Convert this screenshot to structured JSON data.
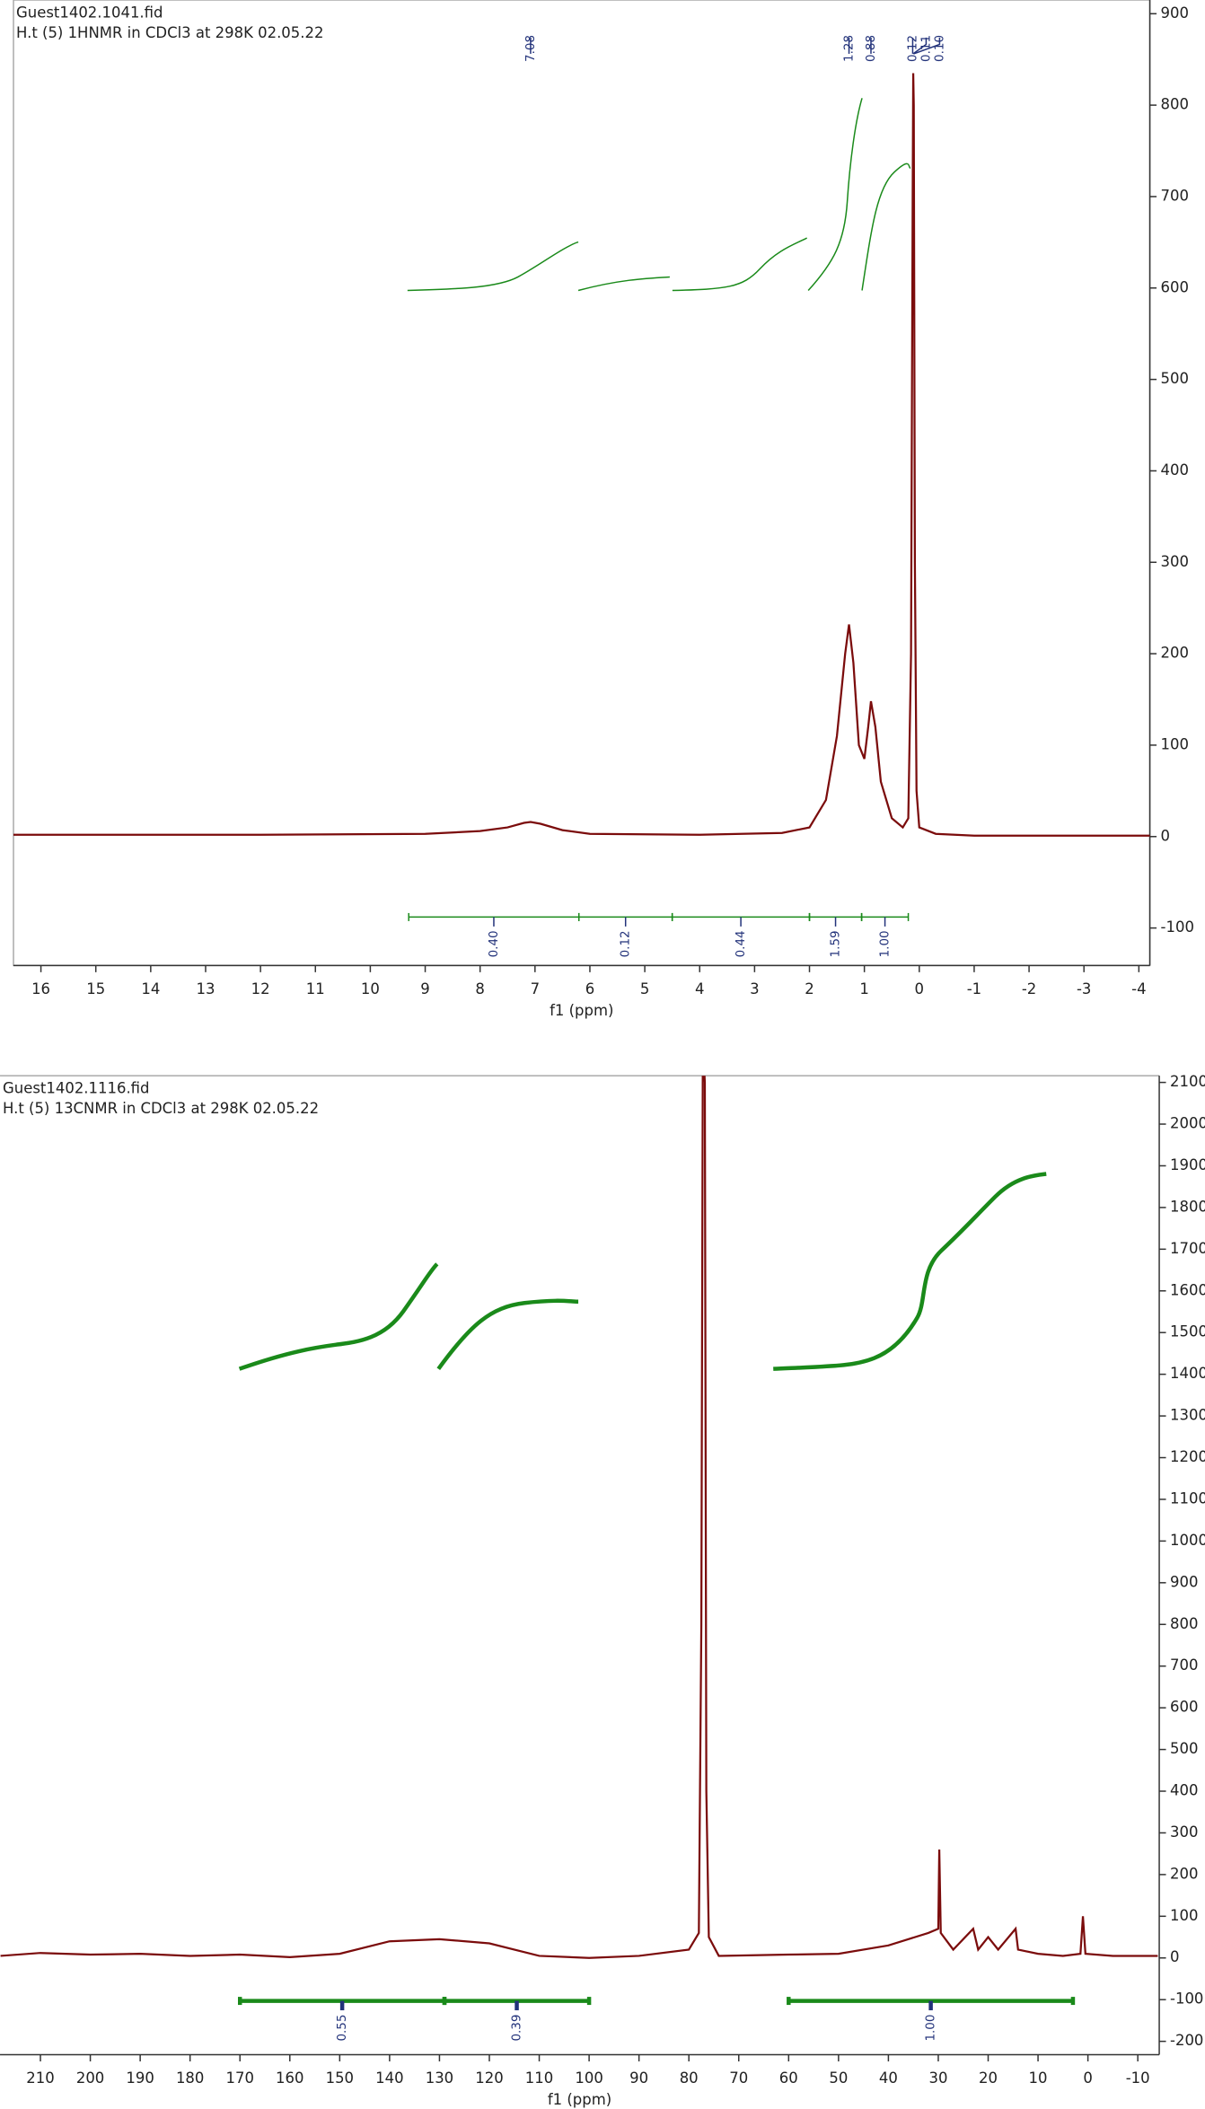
{
  "chart_data": [
    {
      "type": "line",
      "title": "Guest1402.1041.fid",
      "subtitle": "H.t (5) 1HNMR in CDCl3 at 298K 02.05.22",
      "x_label": "f1 (ppm)",
      "color": "#7b0c0c",
      "x": [
        16.5,
        12,
        9,
        8,
        7.5,
        7.2,
        7.08,
        6.9,
        6.5,
        6,
        4,
        2.5,
        2,
        1.7,
        1.5,
        1.35,
        1.28,
        1.2,
        1.1,
        1.0,
        0.93,
        0.88,
        0.8,
        0.7,
        0.5,
        0.3,
        0.2,
        0.15,
        0.12,
        0.11,
        0.1,
        0.08,
        0.05,
        0,
        -0.3,
        -1,
        -4.2
      ],
      "values": [
        2,
        2,
        3,
        6,
        10,
        15,
        16,
        14,
        7,
        3,
        2,
        4,
        10,
        40,
        110,
        200,
        232,
        190,
        100,
        85,
        120,
        148,
        120,
        60,
        20,
        10,
        20,
        200,
        700,
        835,
        800,
        300,
        50,
        10,
        3,
        1,
        1
      ],
      "xlim": [
        16.5,
        -4.2
      ],
      "ylim": [
        -141,
        915
      ],
      "xticks": [
        16,
        15,
        14,
        13,
        12,
        11,
        10,
        9,
        8,
        7,
        6,
        5,
        4,
        3,
        2,
        1,
        0,
        -1,
        -2,
        -3,
        -4
      ],
      "yticks": [
        -100,
        0,
        100,
        200,
        300,
        400,
        500,
        600,
        700,
        800,
        900
      ],
      "peaks": [
        7.08,
        1.28,
        0.88,
        0.12,
        {
          "value": 0.11,
          "label": "0.11"
        },
        {
          "value": 0.1,
          "label": "0.10"
        }
      ],
      "integrals": [
        {
          "range": [
            9.3,
            6.2
          ],
          "value": 0.4,
          "label": "0.40"
        },
        {
          "range": [
            6.2,
            4.5
          ],
          "value": 0.12,
          "label": "0.12"
        },
        {
          "range": [
            4.5,
            2.0
          ],
          "value": 0.44,
          "label": "0.44"
        },
        {
          "range": [
            2.0,
            1.05
          ],
          "value": 1.59,
          "label": "1.59"
        },
        {
          "range": [
            1.05,
            0.2
          ],
          "value": 1,
          "label": "1.00"
        }
      ]
    },
    {
      "type": "line",
      "title": "Guest1402.1116.fid",
      "subtitle": "H.t (5) 13CNMR in CDCl3 at 298K 02.05.22",
      "x_label": "f1 (ppm)",
      "color": "#7b0c0c",
      "x": [
        218,
        210,
        200,
        190,
        180,
        170,
        160,
        150,
        140,
        130,
        120,
        110,
        100,
        90,
        80,
        78,
        77.5,
        77.2,
        76.8,
        76.5,
        76,
        74,
        60,
        50,
        40,
        32,
        30,
        29.8,
        29.5,
        27,
        23,
        22,
        20,
        18,
        14.5,
        14,
        10,
        5,
        1.5,
        1,
        0.5,
        -5,
        -14
      ],
      "values": [
        5,
        12,
        8,
        10,
        5,
        8,
        2,
        10,
        40,
        45,
        35,
        5,
        0,
        5,
        20,
        60,
        800,
        2200,
        2100,
        400,
        50,
        5,
        8,
        10,
        30,
        60,
        70,
        260,
        60,
        20,
        70,
        20,
        50,
        20,
        70,
        20,
        10,
        5,
        10,
        100,
        10,
        5,
        5
      ],
      "xlim": [
        218.1,
        -14.3
      ],
      "ylim": [
        -232,
        2116
      ],
      "xticks": [
        210,
        200,
        190,
        180,
        170,
        160,
        150,
        140,
        130,
        120,
        110,
        100,
        90,
        80,
        70,
        60,
        50,
        40,
        30,
        20,
        10,
        0,
        -10
      ],
      "yticks": [
        -200,
        -100,
        0,
        100,
        200,
        300,
        400,
        500,
        600,
        700,
        800,
        900,
        1000,
        1100,
        1200,
        1300,
        1400,
        1500,
        1600,
        1700,
        1800,
        1900,
        2000,
        2100
      ],
      "peaks": [],
      "integrals": [
        {
          "range": [
            170,
            129
          ],
          "value": 0.55,
          "label": "0.55"
        },
        {
          "range": [
            129,
            100
          ],
          "value": 0.39,
          "label": "0.39"
        },
        {
          "range": [
            60,
            3
          ],
          "value": 1,
          "label": "1.00"
        }
      ]
    }
  ]
}
